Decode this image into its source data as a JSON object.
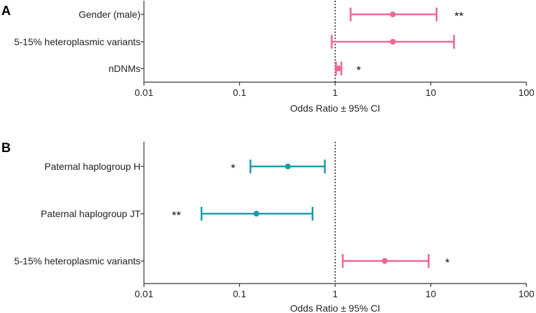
{
  "chart_data": [
    {
      "panel": "A",
      "type": "forest",
      "xscale": "log",
      "xlim": [
        0.01,
        100
      ],
      "ticks": [
        0.01,
        0.1,
        1,
        10,
        100
      ],
      "tick_labels": [
        "0.01",
        "0.1",
        "1",
        "10",
        "100"
      ],
      "reference_line": 1,
      "xlabel": "Odds Ratio ± 95% CI",
      "rows": [
        {
          "label": "Gender (male)",
          "or": 4.0,
          "lo": 1.45,
          "hi": 11.5,
          "color": "#f06595",
          "sig": "**"
        },
        {
          "label": "5-15% heteroplasmic variants",
          "or": 4.0,
          "lo": 0.92,
          "hi": 17.5,
          "color": "#f06595",
          "sig": ""
        },
        {
          "label": "nDNMs",
          "or": 1.08,
          "lo": 1.02,
          "hi": 1.16,
          "color": "#f06595",
          "sig": "*"
        }
      ]
    },
    {
      "panel": "B",
      "type": "forest",
      "xscale": "log",
      "xlim": [
        0.01,
        100
      ],
      "ticks": [
        0.01,
        0.1,
        1,
        10,
        100
      ],
      "tick_labels": [
        "0.01",
        "0.1",
        "1",
        "10",
        "100"
      ],
      "reference_line": 1,
      "xlabel": "Odds Ratio ± 95% CI",
      "rows": [
        {
          "label": "Paternal haplogroup H",
          "or": 0.32,
          "lo": 0.13,
          "hi": 0.78,
          "color": "#1a9aad",
          "sig": "*"
        },
        {
          "label": "Paternal haplogroup JT",
          "or": 0.15,
          "lo": 0.04,
          "hi": 0.58,
          "color": "#1a9aad",
          "sig": "**"
        },
        {
          "label": "5-15% heteroplasmic variants",
          "or": 3.3,
          "lo": 1.2,
          "hi": 9.5,
          "color": "#f06595",
          "sig": "*"
        }
      ]
    }
  ]
}
